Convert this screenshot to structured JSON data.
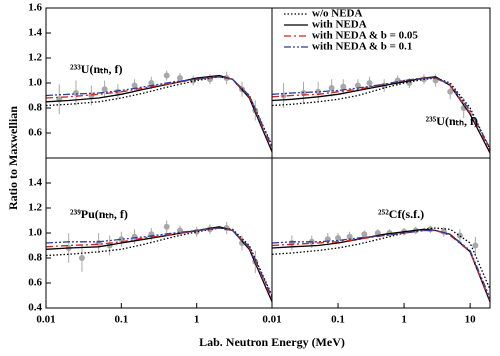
{
  "xlabel": "Lab. Neutron Energy  (MeV)",
  "ylabel": "Ratio to Maxwellian",
  "chart_data": [
    {
      "type": "line",
      "annotation": "²³³U(nₜₕ, f)",
      "log_x": true,
      "xlim": [
        0.01,
        10
      ],
      "ylim": [
        0.4,
        1.6
      ],
      "yticks": [
        0.6,
        0.8,
        {
          "value": 1.0,
          "label": "1.0"
        },
        1.2,
        1.4,
        1.6
      ],
      "x": [
        0.01,
        0.02,
        0.05,
        0.1,
        0.2,
        0.5,
        1,
        2,
        3,
        5,
        10
      ],
      "series": [
        {
          "color": "#000000",
          "dash": "dotted",
          "values": [
            0.82,
            0.83,
            0.85,
            0.88,
            0.92,
            0.98,
            1.02,
            1.05,
            1.03,
            0.9,
            0.5
          ]
        },
        {
          "color": "#000000",
          "dash": "solid",
          "values": [
            0.85,
            0.86,
            0.88,
            0.91,
            0.95,
            1.0,
            1.04,
            1.06,
            1.03,
            0.88,
            0.45
          ]
        },
        {
          "color": "#d62020",
          "dash": "dashdot",
          "values": [
            0.88,
            0.89,
            0.91,
            0.93,
            0.96,
            1.0,
            1.03,
            1.05,
            1.03,
            0.89,
            0.47
          ]
        },
        {
          "color": "#2a3fa0",
          "dash": "dashdotdot",
          "values": [
            0.9,
            0.91,
            0.92,
            0.94,
            0.97,
            1.01,
            1.03,
            1.05,
            1.03,
            0.9,
            0.49
          ]
        }
      ],
      "experiment": {
        "color": "#a8a8a8",
        "x": [
          0.015,
          0.025,
          0.04,
          0.06,
          0.09,
          0.15,
          0.25,
          0.4,
          0.6,
          0.9,
          1.5,
          2.5,
          4,
          6
        ],
        "values": [
          0.87,
          0.92,
          0.9,
          0.95,
          0.93,
          0.98,
          1.0,
          1.06,
          1.04,
          1.02,
          1.03,
          1.04,
          0.95,
          0.78
        ],
        "errors": [
          0.12,
          0.1,
          0.08,
          0.07,
          0.06,
          0.05,
          0.05,
          0.04,
          0.04,
          0.04,
          0.04,
          0.05,
          0.06,
          0.08
        ]
      }
    },
    {
      "type": "line",
      "annotation": "²³⁵U(nₜₕ, f)",
      "log_x": true,
      "xlim": [
        0.01,
        20
      ],
      "ylim": [
        0.4,
        1.6
      ],
      "legend": "upper left",
      "x": [
        0.01,
        0.02,
        0.05,
        0.1,
        0.2,
        0.5,
        1,
        2,
        3,
        5,
        10,
        20
      ],
      "series": [
        {
          "name": "w/o NEDA",
          "color": "#000000",
          "dash": "dotted",
          "values": [
            0.82,
            0.83,
            0.85,
            0.87,
            0.9,
            0.96,
            1.0,
            1.03,
            1.04,
            1.0,
            0.8,
            0.47
          ]
        },
        {
          "name": "with NEDA",
          "color": "#000000",
          "dash": "solid",
          "values": [
            0.86,
            0.87,
            0.89,
            0.91,
            0.94,
            0.98,
            1.01,
            1.04,
            1.05,
            0.98,
            0.75,
            0.44
          ]
        },
        {
          "name": "with NEDA & b = 0.05",
          "color": "#d62020",
          "dash": "dashdot",
          "values": [
            0.89,
            0.9,
            0.91,
            0.93,
            0.95,
            0.99,
            1.02,
            1.04,
            1.04,
            0.98,
            0.76,
            0.46
          ]
        },
        {
          "name": "with NEDA & b = 0.1",
          "color": "#2a3fa0",
          "dash": "dashdotdot",
          "values": [
            0.91,
            0.92,
            0.93,
            0.94,
            0.96,
            0.99,
            1.02,
            1.04,
            1.04,
            0.99,
            0.78,
            0.48
          ]
        }
      ],
      "experiment": {
        "color": "#a8a8a8",
        "x": [
          0.015,
          0.03,
          0.05,
          0.08,
          0.12,
          0.2,
          0.3,
          0.5,
          0.8,
          1.2,
          2,
          3,
          5,
          8
        ],
        "values": [
          0.9,
          0.92,
          0.93,
          0.96,
          0.97,
          0.98,
          1.0,
          0.98,
          1.02,
          1.0,
          1.03,
          1.02,
          0.93,
          0.8
        ],
        "errors": [
          0.1,
          0.09,
          0.08,
          0.07,
          0.06,
          0.05,
          0.05,
          0.05,
          0.04,
          0.04,
          0.04,
          0.05,
          0.06,
          0.08
        ]
      }
    },
    {
      "type": "line",
      "annotation": "²³⁹Pu(nₜₕ, f)",
      "log_x": true,
      "xlim": [
        0.01,
        10
      ],
      "ylim": [
        0.4,
        1.6
      ],
      "yticks": [
        0.4,
        0.6,
        0.8,
        {
          "value": 1.0,
          "label": "1.0"
        },
        1.2,
        1.4
      ],
      "xticks": [
        0.01,
        0.1,
        1
      ],
      "x": [
        0.01,
        0.02,
        0.05,
        0.1,
        0.2,
        0.5,
        1,
        2,
        3,
        5,
        10
      ],
      "series": [
        {
          "color": "#000000",
          "dash": "dotted",
          "values": [
            0.82,
            0.83,
            0.85,
            0.87,
            0.91,
            0.97,
            1.01,
            1.04,
            1.03,
            0.9,
            0.5
          ]
        },
        {
          "color": "#000000",
          "dash": "solid",
          "values": [
            0.87,
            0.88,
            0.89,
            0.92,
            0.95,
            0.99,
            1.02,
            1.05,
            1.02,
            0.87,
            0.45
          ]
        },
        {
          "color": "#d62020",
          "dash": "dashdot",
          "values": [
            0.89,
            0.9,
            0.91,
            0.93,
            0.96,
            0.99,
            1.02,
            1.04,
            1.02,
            0.88,
            0.47
          ]
        },
        {
          "color": "#2a3fa0",
          "dash": "dashdotdot",
          "values": [
            0.92,
            0.93,
            0.93,
            0.95,
            0.97,
            1.0,
            1.02,
            1.04,
            1.02,
            0.89,
            0.49
          ]
        }
      ],
      "experiment": {
        "color": "#a8a8a8",
        "x": [
          0.02,
          0.03,
          0.05,
          0.07,
          0.1,
          0.15,
          0.25,
          0.4,
          0.6,
          1,
          1.5,
          2.5,
          4,
          6
        ],
        "values": [
          0.88,
          0.8,
          0.92,
          0.9,
          0.95,
          0.97,
          0.99,
          1.05,
          1.02,
          1.01,
          1.03,
          1.04,
          0.92,
          0.77
        ],
        "errors": [
          0.12,
          0.11,
          0.08,
          0.08,
          0.06,
          0.06,
          0.05,
          0.05,
          0.04,
          0.04,
          0.04,
          0.05,
          0.06,
          0.09
        ]
      }
    },
    {
      "type": "line",
      "annotation": "²⁵²Cf(s.f.)",
      "log_x": true,
      "xlim": [
        0.01,
        20
      ],
      "ylim": [
        0.4,
        1.6
      ],
      "xticks": [
        0.01,
        0.1,
        1,
        10
      ],
      "x": [
        0.01,
        0.02,
        0.05,
        0.1,
        0.2,
        0.5,
        1,
        2,
        3,
        5,
        10,
        20
      ],
      "series": [
        {
          "color": "#000000",
          "dash": "dotted",
          "values": [
            0.83,
            0.84,
            0.86,
            0.88,
            0.91,
            0.96,
            1.0,
            1.03,
            1.04,
            1.03,
            0.92,
            0.55
          ]
        },
        {
          "color": "#000000",
          "dash": "solid",
          "values": [
            0.88,
            0.89,
            0.9,
            0.92,
            0.95,
            0.99,
            1.01,
            1.03,
            1.02,
            0.99,
            0.85,
            0.45
          ]
        },
        {
          "color": "#d62020",
          "dash": "dashdot",
          "values": [
            0.9,
            0.91,
            0.92,
            0.93,
            0.95,
            0.98,
            1.0,
            1.02,
            1.02,
            0.98,
            0.85,
            0.46
          ]
        },
        {
          "color": "#2a3fa0",
          "dash": "dashdotdot",
          "values": [
            0.92,
            0.93,
            0.93,
            0.94,
            0.96,
            0.98,
            1.0,
            1.02,
            1.02,
            0.99,
            0.86,
            0.48
          ]
        }
      ],
      "experiment": {
        "color": "#a8a8a8",
        "x": [
          0.02,
          0.04,
          0.07,
          0.1,
          0.15,
          0.25,
          0.4,
          0.6,
          1,
          1.5,
          2.5,
          4,
          7,
          12
        ],
        "values": [
          0.92,
          0.93,
          0.95,
          0.96,
          0.97,
          0.99,
          1.0,
          1.0,
          1.01,
          1.02,
          1.03,
          1.01,
          0.98,
          0.9
        ],
        "errors": [
          0.06,
          0.05,
          0.05,
          0.04,
          0.04,
          0.03,
          0.03,
          0.03,
          0.03,
          0.03,
          0.03,
          0.04,
          0.05,
          0.07
        ]
      }
    }
  ]
}
